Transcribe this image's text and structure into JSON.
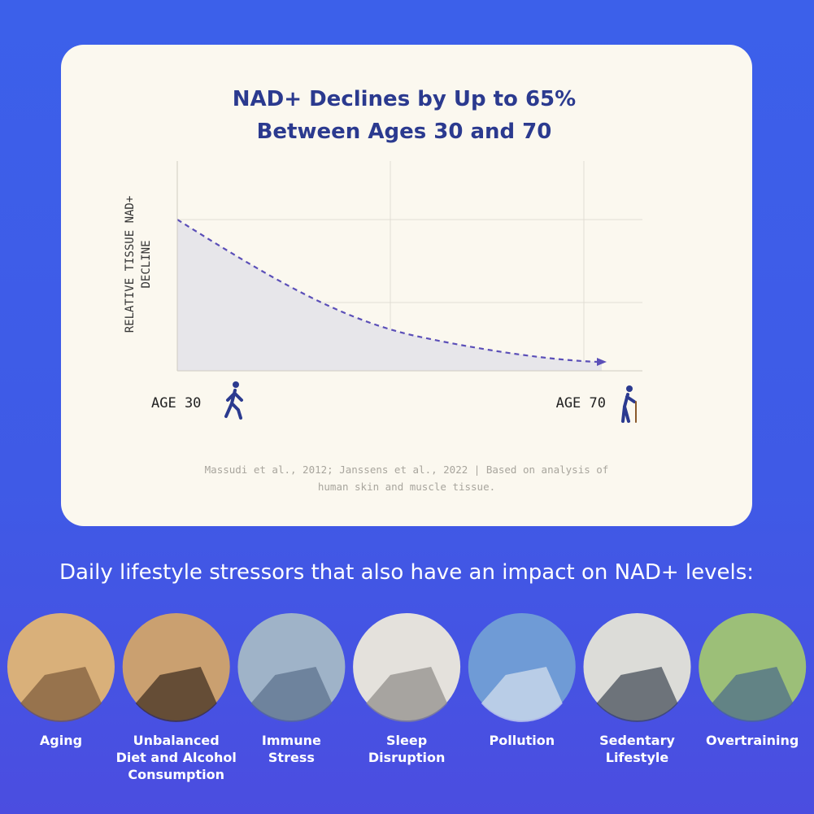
{
  "card": {
    "title": [
      "NAD+ Declines by Up to 65%",
      "Between Ages 30 and 70"
    ],
    "y_axis_label": [
      "RELATIVE TISSUE NAD+",
      "DECLINE"
    ],
    "x_start_label": "AGE 30",
    "x_end_label": "AGE 70",
    "source": [
      "Massudi et al., 2012; Janssens et al., 2022 | Based on analysis of",
      "human skin and muscle tissue."
    ]
  },
  "section": {
    "heading": "Daily lifestyle stressors that also have an impact on NAD+ levels:",
    "items": [
      {
        "lines": [
          "Aging"
        ]
      },
      {
        "lines": [
          "Unbalanced",
          "Diet and Alcohol",
          "Consumption"
        ]
      },
      {
        "lines": [
          "Immune",
          "Stress"
        ]
      },
      {
        "lines": [
          "Sleep",
          "Disruption"
        ]
      },
      {
        "lines": [
          "Pollution"
        ]
      },
      {
        "lines": [
          "Sedentary",
          "Lifestyle"
        ]
      },
      {
        "lines": [
          "Overtraining"
        ]
      }
    ]
  }
}
